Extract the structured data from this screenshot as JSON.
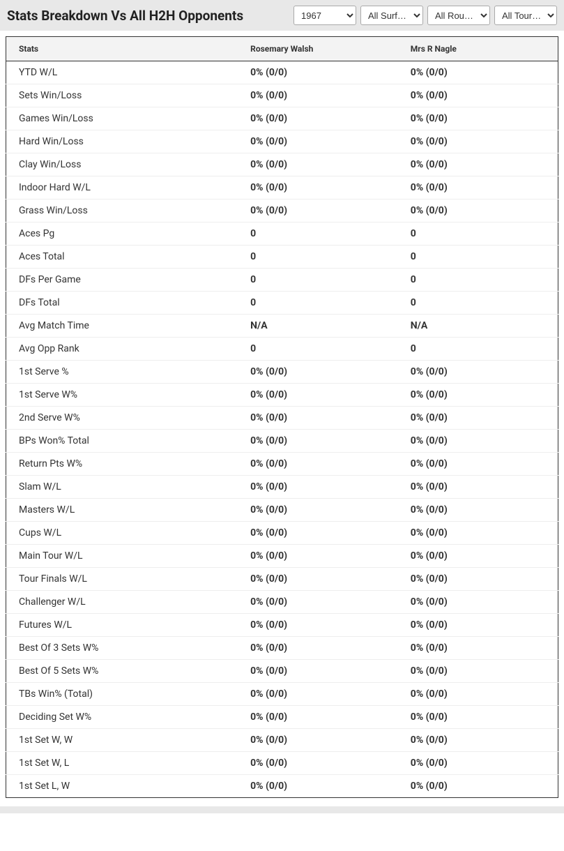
{
  "header": {
    "title": "Stats Breakdown Vs All H2H Opponents",
    "filters": {
      "year": "1967",
      "surface": "All Surf…",
      "round": "All Rou…",
      "tournament": "All Tour…"
    }
  },
  "table": {
    "columns": {
      "stats": "Stats",
      "player1": "Rosemary Walsh",
      "player2": "Mrs R Nagle"
    },
    "rows": [
      {
        "stat": "YTD W/L",
        "p1": "0% (0/0)",
        "p2": "0% (0/0)"
      },
      {
        "stat": "Sets Win/Loss",
        "p1": "0% (0/0)",
        "p2": "0% (0/0)"
      },
      {
        "stat": "Games Win/Loss",
        "p1": "0% (0/0)",
        "p2": "0% (0/0)"
      },
      {
        "stat": "Hard Win/Loss",
        "p1": "0% (0/0)",
        "p2": "0% (0/0)"
      },
      {
        "stat": "Clay Win/Loss",
        "p1": "0% (0/0)",
        "p2": "0% (0/0)"
      },
      {
        "stat": "Indoor Hard W/L",
        "p1": "0% (0/0)",
        "p2": "0% (0/0)"
      },
      {
        "stat": "Grass Win/Loss",
        "p1": "0% (0/0)",
        "p2": "0% (0/0)"
      },
      {
        "stat": "Aces Pg",
        "p1": "0",
        "p2": "0"
      },
      {
        "stat": "Aces Total",
        "p1": "0",
        "p2": "0"
      },
      {
        "stat": "DFs Per Game",
        "p1": "0",
        "p2": "0"
      },
      {
        "stat": "DFs Total",
        "p1": "0",
        "p2": "0"
      },
      {
        "stat": "Avg Match Time",
        "p1": "N/A",
        "p2": "N/A"
      },
      {
        "stat": "Avg Opp Rank",
        "p1": "0",
        "p2": "0"
      },
      {
        "stat": "1st Serve %",
        "p1": "0% (0/0)",
        "p2": "0% (0/0)"
      },
      {
        "stat": "1st Serve W%",
        "p1": "0% (0/0)",
        "p2": "0% (0/0)"
      },
      {
        "stat": "2nd Serve W%",
        "p1": "0% (0/0)",
        "p2": "0% (0/0)"
      },
      {
        "stat": "BPs Won% Total",
        "p1": "0% (0/0)",
        "p2": "0% (0/0)"
      },
      {
        "stat": "Return Pts W%",
        "p1": "0% (0/0)",
        "p2": "0% (0/0)"
      },
      {
        "stat": "Slam W/L",
        "p1": "0% (0/0)",
        "p2": "0% (0/0)"
      },
      {
        "stat": "Masters W/L",
        "p1": "0% (0/0)",
        "p2": "0% (0/0)"
      },
      {
        "stat": "Cups W/L",
        "p1": "0% (0/0)",
        "p2": "0% (0/0)"
      },
      {
        "stat": "Main Tour W/L",
        "p1": "0% (0/0)",
        "p2": "0% (0/0)"
      },
      {
        "stat": "Tour Finals W/L",
        "p1": "0% (0/0)",
        "p2": "0% (0/0)"
      },
      {
        "stat": "Challenger W/L",
        "p1": "0% (0/0)",
        "p2": "0% (0/0)"
      },
      {
        "stat": "Futures W/L",
        "p1": "0% (0/0)",
        "p2": "0% (0/0)"
      },
      {
        "stat": "Best Of 3 Sets W%",
        "p1": "0% (0/0)",
        "p2": "0% (0/0)"
      },
      {
        "stat": "Best Of 5 Sets W%",
        "p1": "0% (0/0)",
        "p2": "0% (0/0)"
      },
      {
        "stat": "TBs Win% (Total)",
        "p1": "0% (0/0)",
        "p2": "0% (0/0)"
      },
      {
        "stat": "Deciding Set W%",
        "p1": "0% (0/0)",
        "p2": "0% (0/0)"
      },
      {
        "stat": "1st Set W, W",
        "p1": "0% (0/0)",
        "p2": "0% (0/0)"
      },
      {
        "stat": "1st Set W, L",
        "p1": "0% (0/0)",
        "p2": "0% (0/0)"
      },
      {
        "stat": "1st Set L, W",
        "p1": "0% (0/0)",
        "p2": "0% (0/0)"
      }
    ]
  },
  "styling": {
    "header_bg": "#e8e8e8",
    "table_border": "#333333",
    "row_border": "#eeeeee",
    "thead_bg": "#f3f3f3",
    "title_fontsize": 19,
    "th_fontsize": 12,
    "td_fontsize": 14
  }
}
